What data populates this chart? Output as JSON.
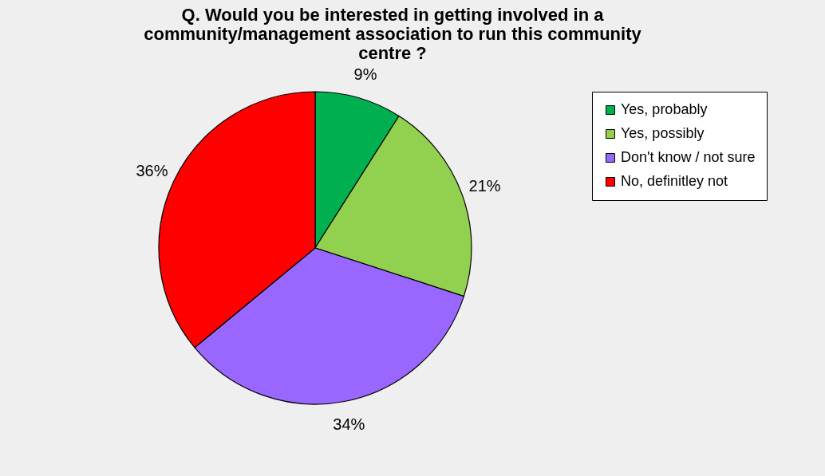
{
  "chart_data": {
    "type": "pie",
    "title": "Q. Would you be interested in getting involved in a community/management association to run this community centre ?",
    "categories": [
      "Yes, probably",
      "Yes, possibly",
      "Don't know / not sure",
      "No, definitley not"
    ],
    "values": [
      9,
      21,
      34,
      36
    ],
    "colors": [
      "#00b050",
      "#92d050",
      "#9966ff",
      "#ff0000"
    ],
    "value_labels": [
      "9%",
      "21%",
      "34%",
      "36%"
    ],
    "legend": "right"
  }
}
